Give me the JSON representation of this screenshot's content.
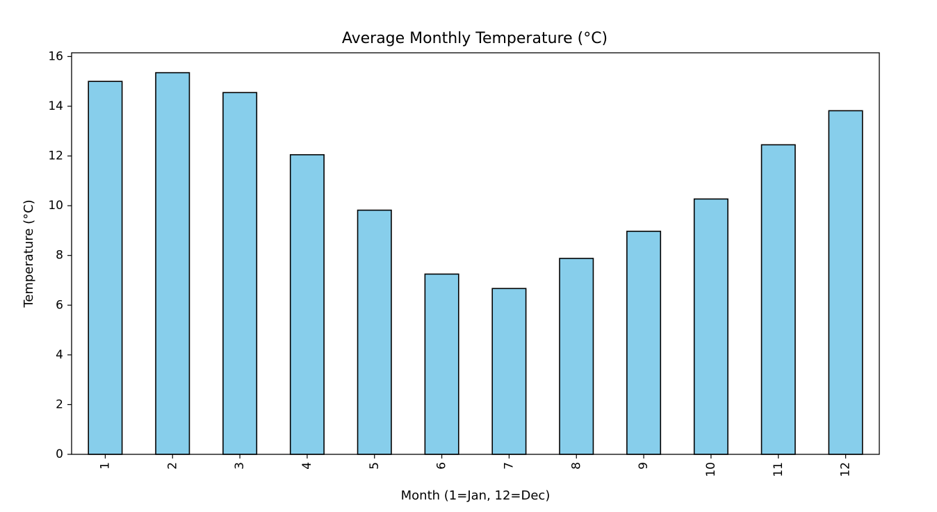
{
  "chart_data": {
    "type": "bar",
    "title": "Average Monthly Temperature (°C)",
    "xlabel": "Month (1=Jan, 12=Dec)",
    "ylabel": "Temperature (°C)",
    "categories": [
      "1",
      "2",
      "3",
      "4",
      "5",
      "6",
      "7",
      "8",
      "9",
      "10",
      "11",
      "12"
    ],
    "values": [
      15.0,
      15.35,
      14.55,
      12.05,
      9.82,
      7.25,
      6.67,
      7.88,
      8.97,
      10.27,
      12.45,
      13.82
    ],
    "ylim": [
      0,
      16.15
    ],
    "yticks": [
      "0",
      "2",
      "4",
      "6",
      "8",
      "10",
      "12",
      "14",
      "16"
    ],
    "bar_color": "#87CEEB",
    "edge_color": "#000000",
    "grid": false,
    "xtick_rotation": "vertical"
  }
}
